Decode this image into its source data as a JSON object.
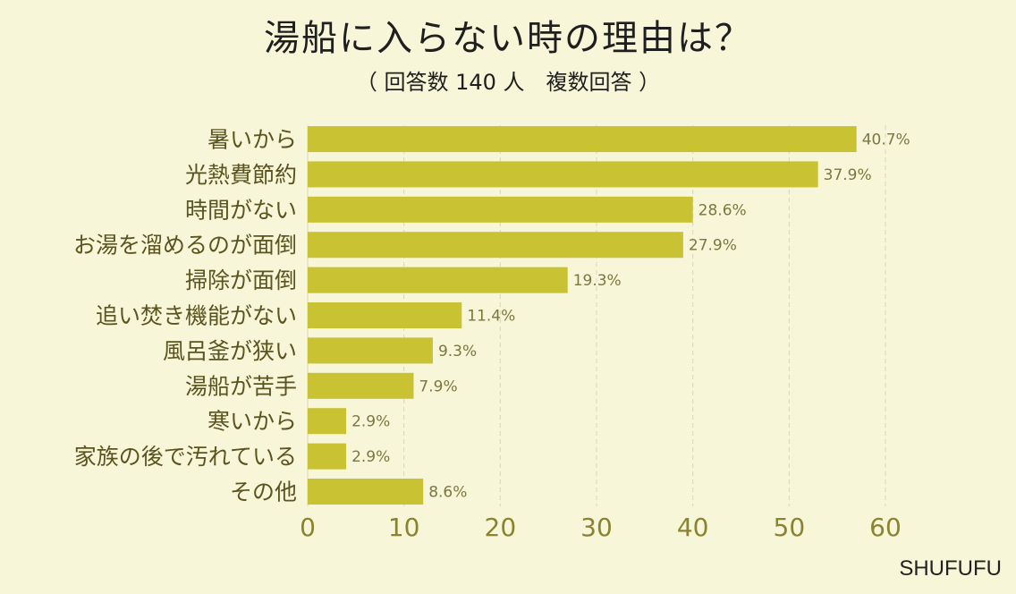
{
  "title": "湯船に入らない時の理由は？",
  "subtitle": "（ 回答数 140 人　複数回答 ）",
  "brand": "SHUFUFU",
  "colors": {
    "background": "#f7f6d8",
    "bar": "#c9c233",
    "grid": "#d8d6c0"
  },
  "chart_data": {
    "type": "bar",
    "orientation": "horizontal",
    "categories": [
      "暑いから",
      "光熱費節約",
      "時間がない",
      "お湯を溜めるのが面倒",
      "掃除が面倒",
      "追い焚き機能がない",
      "風呂釜が狭い",
      "湯船が苦手",
      "寒いから",
      "家族の後で汚れている",
      "その他"
    ],
    "values": [
      57,
      53,
      40,
      39,
      27,
      16,
      13,
      11,
      4,
      4,
      12
    ],
    "value_labels": [
      "40.7%",
      "37.9%",
      "28.6%",
      "27.9%",
      "19.3%",
      "11.4%",
      "9.3%",
      "7.9%",
      "2.9%",
      "2.9%",
      "8.6%"
    ],
    "xlim": [
      0,
      60
    ],
    "xticks": [
      "0",
      "10",
      "20",
      "30",
      "40",
      "50",
      "60"
    ],
    "grid": "vertical dashed"
  }
}
